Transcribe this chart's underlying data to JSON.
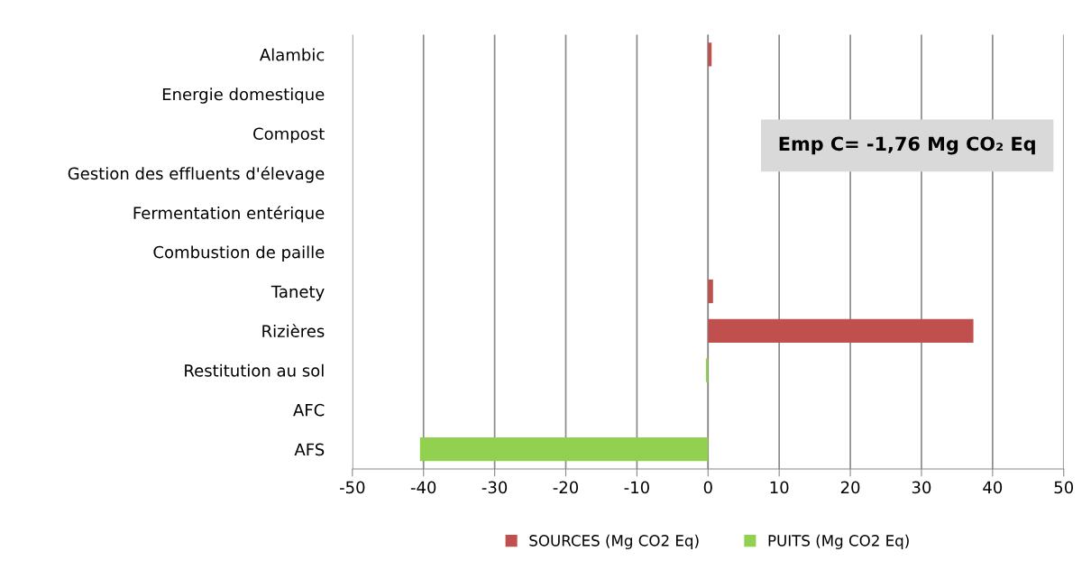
{
  "chart_data": {
    "type": "bar",
    "orientation": "horizontal",
    "categories": [
      "Alambic",
      "Energie domestique",
      "Compost",
      "Gestion des effluents d'élevage",
      "Fermentation entérique",
      "Combustion de paille",
      "Tanety",
      "Rizières",
      "Restitution au sol",
      "AFC",
      "AFS"
    ],
    "series": [
      {
        "name": "SOURCES (Mg CO2 Eq)",
        "color": "#c0504d",
        "values": [
          0.5,
          null,
          null,
          null,
          null,
          null,
          0.7,
          37.3,
          null,
          null,
          null
        ]
      },
      {
        "name": "PUITS (Mg CO2 Eq)",
        "color": "#92d050",
        "values": [
          null,
          null,
          null,
          null,
          null,
          null,
          null,
          null,
          -0.3,
          null,
          -40.5
        ]
      }
    ],
    "xlim": [
      -50,
      50
    ],
    "xticks": [
      -50,
      -40,
      -30,
      -20,
      -10,
      0,
      10,
      20,
      30,
      40,
      50
    ],
    "grid": "x",
    "legend": "bottom",
    "annotations": [
      "Emp C= -1,76 Mg CO₂ Eq"
    ]
  }
}
